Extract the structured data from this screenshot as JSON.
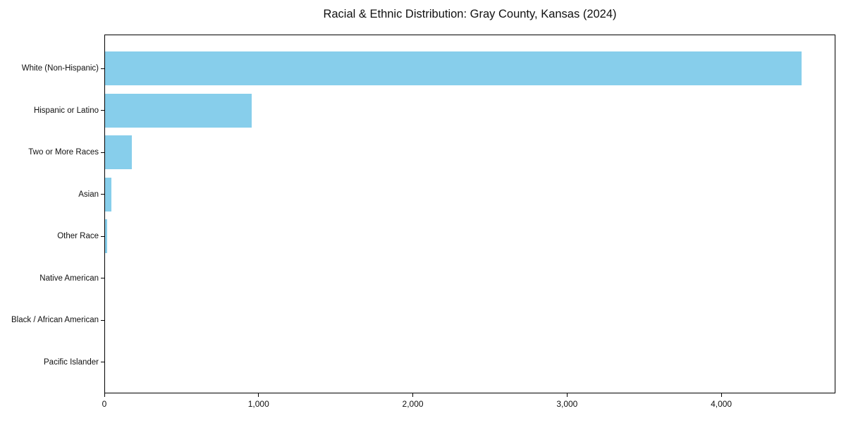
{
  "chart_data": {
    "type": "bar",
    "orientation": "horizontal",
    "title": "Racial & Ethnic Distribution: Gray County, Kansas (2024)",
    "categories": [
      "White (Non-Hispanic)",
      "Hispanic or Latino",
      "Two or More Races",
      "Asian",
      "Other Race",
      "Native American",
      "Black / African American",
      "Pacific Islander"
    ],
    "values": [
      4515,
      950,
      175,
      40,
      15,
      0,
      0,
      0
    ],
    "xlabel": "",
    "ylabel": "",
    "xlim": [
      0,
      4740
    ],
    "x_ticks": [
      0,
      1000,
      2000,
      3000,
      4000
    ],
    "x_tick_labels": [
      "0",
      "1,000",
      "2,000",
      "3,000",
      "4,000"
    ],
    "bar_color": "#87CEEB",
    "background_color": "#ffffff",
    "grid": false,
    "legend": false
  }
}
